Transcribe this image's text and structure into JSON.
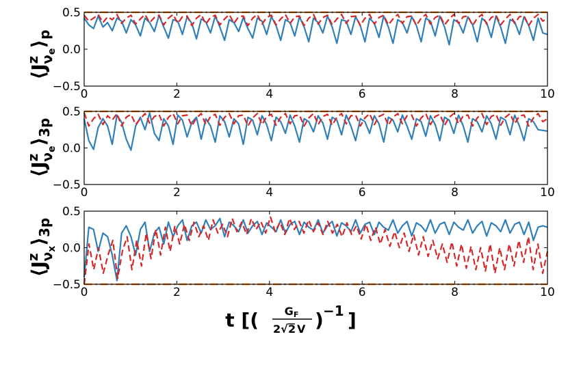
{
  "colors": {
    "blue_series": "#2f7fb8",
    "red_series": "#d62728",
    "orange_series": "#ff7f0e",
    "axis": "#000000"
  },
  "xlabel": {
    "prefix": "t [(",
    "frac_num": "G",
    "frac_num_sub": "F",
    "frac_den_a": "2",
    "frac_den_root": "2",
    "frac_den_b": "V",
    "suffix": ")",
    "exponent": "−1",
    "close": "]"
  },
  "chart_data": [
    {
      "type": "line",
      "ylabel": {
        "main": "⟨J",
        "sup": "z",
        "sub": "ν",
        "subsub": "e",
        "close": "⟩",
        "trail": "p"
      },
      "xlim": [
        0,
        10
      ],
      "ylim": [
        -0.5,
        0.5
      ],
      "xticks": [
        "0",
        "2",
        "4",
        "6",
        "8",
        "10"
      ],
      "yticks": [
        "0.5",
        "0.0",
        "−0.5"
      ],
      "series": [
        {
          "style": "solid",
          "color": "blue",
          "t_end": 10,
          "values": [
            0.42,
            0.33,
            0.28,
            0.45,
            0.3,
            0.36,
            0.25,
            0.42,
            0.38,
            0.22,
            0.4,
            0.33,
            0.18,
            0.42,
            0.36,
            0.24,
            0.46,
            0.3,
            0.15,
            0.4,
            0.38,
            0.2,
            0.44,
            0.35,
            0.14,
            0.41,
            0.37,
            0.22,
            0.45,
            0.3,
            0.12,
            0.4,
            0.36,
            0.24,
            0.43,
            0.28,
            0.15,
            0.42,
            0.38,
            0.2,
            0.44,
            0.32,
            0.12,
            0.4,
            0.36,
            0.18,
            0.44,
            0.3,
            0.1,
            0.42,
            0.36,
            0.22,
            0.45,
            0.3,
            0.08,
            0.4,
            0.38,
            0.2,
            0.44,
            0.32,
            0.1,
            0.42,
            0.35,
            0.16,
            0.45,
            0.3,
            0.08,
            0.4,
            0.36,
            0.22,
            0.44,
            0.32,
            0.1,
            0.42,
            0.38,
            0.18,
            0.45,
            0.3,
            0.06,
            0.4,
            0.36,
            0.22,
            0.44,
            0.33,
            0.1,
            0.42,
            0.36,
            0.16,
            0.45,
            0.3,
            0.08,
            0.4,
            0.37,
            0.2,
            0.44,
            0.32,
            0.12,
            0.42,
            0.22,
            0.2
          ]
        },
        {
          "style": "dashed",
          "color": "red",
          "t_end": 10,
          "values": [
            0.46,
            0.38,
            0.42,
            0.47,
            0.36,
            0.44,
            0.4,
            0.47,
            0.35,
            0.42,
            0.46,
            0.34,
            0.41,
            0.47,
            0.36,
            0.43,
            0.46,
            0.33,
            0.42,
            0.47,
            0.35,
            0.44,
            0.45,
            0.32,
            0.42,
            0.47,
            0.34,
            0.43,
            0.46,
            0.33,
            0.41,
            0.47,
            0.35,
            0.44,
            0.45,
            0.32,
            0.42,
            0.47,
            0.34,
            0.43,
            0.46,
            0.33,
            0.41,
            0.47,
            0.35,
            0.44,
            0.45,
            0.32,
            0.42,
            0.47,
            0.34,
            0.43,
            0.46,
            0.33,
            0.41,
            0.47,
            0.35,
            0.44,
            0.45,
            0.32,
            0.42,
            0.47,
            0.34,
            0.43,
            0.46,
            0.33,
            0.41,
            0.47,
            0.35,
            0.44,
            0.45,
            0.32,
            0.42,
            0.47,
            0.34,
            0.43,
            0.46,
            0.33,
            0.41,
            0.47,
            0.35,
            0.44,
            0.45,
            0.32,
            0.42,
            0.47,
            0.34,
            0.43,
            0.46,
            0.33,
            0.41,
            0.47,
            0.35,
            0.44,
            0.45,
            0.32,
            0.42,
            0.47,
            0.38,
            0.42
          ]
        },
        {
          "style": "dashdot",
          "color": "orange",
          "t_end": 10,
          "values": [
            0.5,
            0.5
          ]
        }
      ]
    },
    {
      "type": "line",
      "ylabel": {
        "main": "⟨J",
        "sup": "z",
        "sub": "ν",
        "subsub": "e",
        "close": "⟩",
        "trail": "3p"
      },
      "xlim": [
        0,
        10
      ],
      "ylim": [
        -0.5,
        0.5
      ],
      "xticks": [
        "0",
        "2",
        "4",
        "6",
        "8",
        "10"
      ],
      "yticks": [
        "0.5",
        "0.0",
        "−0.5"
      ],
      "series": [
        {
          "style": "solid",
          "color": "blue",
          "t_end": 10,
          "values": [
            0.4,
            0.1,
            -0.02,
            0.28,
            0.4,
            0.3,
            0.05,
            0.45,
            0.35,
            0.12,
            -0.03,
            0.3,
            0.42,
            0.25,
            0.48,
            0.2,
            0.1,
            0.4,
            0.3,
            0.05,
            0.45,
            0.38,
            0.15,
            0.35,
            0.42,
            0.12,
            0.4,
            0.3,
            0.08,
            0.44,
            0.36,
            0.15,
            0.4,
            0.33,
            0.05,
            0.42,
            0.38,
            0.18,
            0.44,
            0.32,
            0.1,
            0.42,
            0.36,
            0.2,
            0.45,
            0.3,
            0.08,
            0.4,
            0.36,
            0.22,
            0.44,
            0.34,
            0.12,
            0.42,
            0.38,
            0.18,
            0.45,
            0.3,
            0.1,
            0.4,
            0.36,
            0.2,
            0.44,
            0.33,
            0.08,
            0.42,
            0.38,
            0.22,
            0.45,
            0.3,
            0.12,
            0.4,
            0.36,
            0.16,
            0.44,
            0.32,
            0.1,
            0.42,
            0.38,
            0.2,
            0.45,
            0.3,
            0.08,
            0.4,
            0.36,
            0.22,
            0.44,
            0.33,
            0.12,
            0.42,
            0.38,
            0.18,
            0.45,
            0.3,
            0.1,
            0.4,
            0.36,
            0.25,
            0.24,
            0.23
          ]
        },
        {
          "style": "dashed",
          "color": "red",
          "t_end": 10,
          "values": [
            0.48,
            0.3,
            0.4,
            0.46,
            0.32,
            0.44,
            0.38,
            0.47,
            0.3,
            0.42,
            0.46,
            0.32,
            0.4,
            0.47,
            0.34,
            0.43,
            0.46,
            0.3,
            0.42,
            0.47,
            0.33,
            0.44,
            0.45,
            0.3,
            0.41,
            0.47,
            0.32,
            0.43,
            0.46,
            0.31,
            0.42,
            0.47,
            0.33,
            0.44,
            0.45,
            0.3,
            0.41,
            0.47,
            0.32,
            0.43,
            0.46,
            0.31,
            0.42,
            0.47,
            0.33,
            0.44,
            0.45,
            0.3,
            0.41,
            0.47,
            0.32,
            0.43,
            0.46,
            0.31,
            0.42,
            0.47,
            0.33,
            0.44,
            0.45,
            0.3,
            0.41,
            0.47,
            0.32,
            0.43,
            0.46,
            0.31,
            0.42,
            0.47,
            0.33,
            0.44,
            0.45,
            0.3,
            0.41,
            0.47,
            0.32,
            0.43,
            0.46,
            0.31,
            0.42,
            0.47,
            0.33,
            0.44,
            0.45,
            0.3,
            0.41,
            0.47,
            0.32,
            0.43,
            0.46,
            0.31,
            0.42,
            0.47,
            0.33,
            0.44,
            0.45,
            0.3,
            0.41,
            0.47,
            0.36,
            0.4
          ]
        },
        {
          "style": "dashdot",
          "color": "orange",
          "t_end": 10,
          "values": [
            0.5,
            0.5
          ]
        }
      ]
    },
    {
      "type": "line",
      "ylabel": {
        "main": "⟨J",
        "sup": "z",
        "sub": "ν",
        "subsub": "x",
        "close": "⟩",
        "trail": "3p"
      },
      "xlim": [
        0,
        10
      ],
      "ylim": [
        -0.5,
        0.5
      ],
      "xticks": [
        "0",
        "2",
        "4",
        "6",
        "8",
        "10"
      ],
      "yticks": [
        "0.5",
        "0.0",
        "−0.5"
      ],
      "series": [
        {
          "style": "solid",
          "color": "blue",
          "t_end": 10,
          "values": [
            -0.4,
            0.28,
            0.25,
            -0.05,
            0.2,
            0.15,
            -0.1,
            -0.45,
            0.2,
            0.3,
            0.15,
            -0.1,
            0.25,
            0.35,
            -0.05,
            0.2,
            0.28,
            0.05,
            0.35,
            0.15,
            0.3,
            0.38,
            0.1,
            0.3,
            0.35,
            0.2,
            0.38,
            0.25,
            0.3,
            0.4,
            0.15,
            0.35,
            0.3,
            0.22,
            0.38,
            0.2,
            0.3,
            0.36,
            0.18,
            0.34,
            0.28,
            0.22,
            0.38,
            0.2,
            0.32,
            0.36,
            0.18,
            0.35,
            0.28,
            0.24,
            0.38,
            0.2,
            0.3,
            0.36,
            0.16,
            0.34,
            0.3,
            0.22,
            0.38,
            0.2,
            0.32,
            0.35,
            0.18,
            0.35,
            0.28,
            0.24,
            0.38,
            0.2,
            0.3,
            0.36,
            0.16,
            0.34,
            0.3,
            0.22,
            0.38,
            0.2,
            0.32,
            0.35,
            0.18,
            0.35,
            0.28,
            0.24,
            0.38,
            0.2,
            0.3,
            0.36,
            0.16,
            0.34,
            0.3,
            0.22,
            0.38,
            0.2,
            0.32,
            0.35,
            0.18,
            0.35,
            0.1,
            0.28,
            0.3,
            0.28
          ]
        },
        {
          "style": "dashed",
          "color": "red",
          "t_end": 10,
          "values": [
            -0.5,
            0.05,
            -0.3,
            0.0,
            -0.35,
            -0.1,
            0.1,
            -0.42,
            -0.05,
            0.15,
            -0.3,
            0.1,
            -0.25,
            0.2,
            -0.15,
            0.25,
            -0.1,
            0.28,
            -0.05,
            0.3,
            0.05,
            0.32,
            0.1,
            0.35,
            0.15,
            0.3,
            0.1,
            0.38,
            0.2,
            0.32,
            0.15,
            0.4,
            0.22,
            0.35,
            0.18,
            0.4,
            0.25,
            0.36,
            0.2,
            0.42,
            0.22,
            0.35,
            0.18,
            0.4,
            0.25,
            0.36,
            0.2,
            0.38,
            0.22,
            0.34,
            0.18,
            0.36,
            0.2,
            0.32,
            0.15,
            0.34,
            0.18,
            0.3,
            0.12,
            0.32,
            0.1,
            0.28,
            0.05,
            0.25,
            0.02,
            0.22,
            0.0,
            0.2,
            -0.05,
            0.18,
            -0.1,
            0.15,
            -0.12,
            0.1,
            -0.15,
            0.05,
            -0.2,
            0.08,
            -0.25,
            0.05,
            -0.28,
            0.02,
            -0.3,
            0.0,
            -0.32,
            0.05,
            -0.35,
            0.0,
            -0.3,
            0.05,
            -0.25,
            0.1,
            -0.2,
            0.15,
            -0.3,
            0.05,
            -0.35,
            -0.05
          ]
        },
        {
          "style": "dashdot",
          "color": "orange",
          "t_end": 10,
          "values": [
            -0.5,
            -0.5
          ]
        }
      ]
    }
  ]
}
